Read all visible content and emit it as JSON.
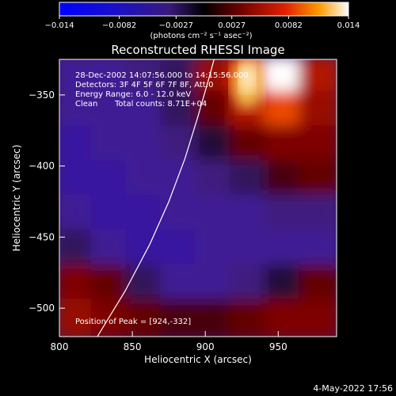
{
  "chart_data": {
    "type": "heatmap",
    "title": "Reconstructed RHESSI Image",
    "xlabel": "Heliocentric X (arcsec)",
    "ylabel": "Heliocentric Y (arcsec)",
    "xlim": [
      800,
      990
    ],
    "ylim": [
      -520,
      -325
    ],
    "xticks": [
      "800",
      "850",
      "900",
      "950"
    ],
    "yticks": [
      "-350",
      "-400",
      "-450",
      "-500"
    ],
    "colorbar": {
      "range": [
        -0.014,
        0.014
      ],
      "ticks": [
        "-0.014",
        "-0.0082",
        "-0.0027",
        "0.0027",
        "0.0082",
        "0.014"
      ],
      "unit_label": "(photons cm⁻² s⁻¹ asec⁻²)"
    },
    "annotations": [
      "28-Dec-2002 14:07:56.000 to 14:15:56.000",
      "Detectors: 3F 4F 5F 6F 7F 8F, Att:0",
      "Energy Range: 6.0 - 12.0 keV",
      "Clean",
      "Total counts: 8.71E+04"
    ],
    "peak_label": "Position of Peak = [924,-332]",
    "peak": {
      "x": 924,
      "y": -332
    },
    "limb_curve": [
      [
        826,
        -520
      ],
      [
        845,
        -488
      ],
      [
        862,
        -455
      ],
      [
        875,
        -425
      ],
      [
        886,
        -395
      ],
      [
        895,
        -365
      ],
      [
        902,
        -340
      ],
      [
        906,
        -325
      ]
    ],
    "intensity_grid": {
      "rows": 8,
      "cols": 8,
      "values": [
        [
          -0.004,
          -0.004,
          -0.003,
          -0.002,
          0.005,
          0.008,
          0.014,
          0.006
        ],
        [
          -0.004,
          -0.004,
          -0.004,
          -0.002,
          0.003,
          0.006,
          0.009,
          0.005
        ],
        [
          -0.005,
          -0.004,
          -0.004,
          -0.003,
          -0.001,
          0.003,
          0.004,
          0.004
        ],
        [
          -0.005,
          -0.005,
          -0.004,
          -0.004,
          -0.003,
          -0.002,
          0.002,
          0.003
        ],
        [
          -0.004,
          -0.005,
          -0.005,
          -0.004,
          -0.004,
          -0.004,
          -0.003,
          -0.003
        ],
        [
          -0.002,
          -0.004,
          -0.005,
          -0.005,
          -0.004,
          -0.004,
          -0.004,
          -0.004
        ],
        [
          0.004,
          0.003,
          -0.002,
          -0.004,
          -0.004,
          -0.003,
          -0.001,
          0.003
        ],
        [
          0.005,
          0.004,
          0.003,
          0.002,
          0.002,
          0.003,
          0.004,
          0.004
        ]
      ]
    }
  },
  "footer": {
    "timestamp": "4-May-2022 17:56"
  }
}
